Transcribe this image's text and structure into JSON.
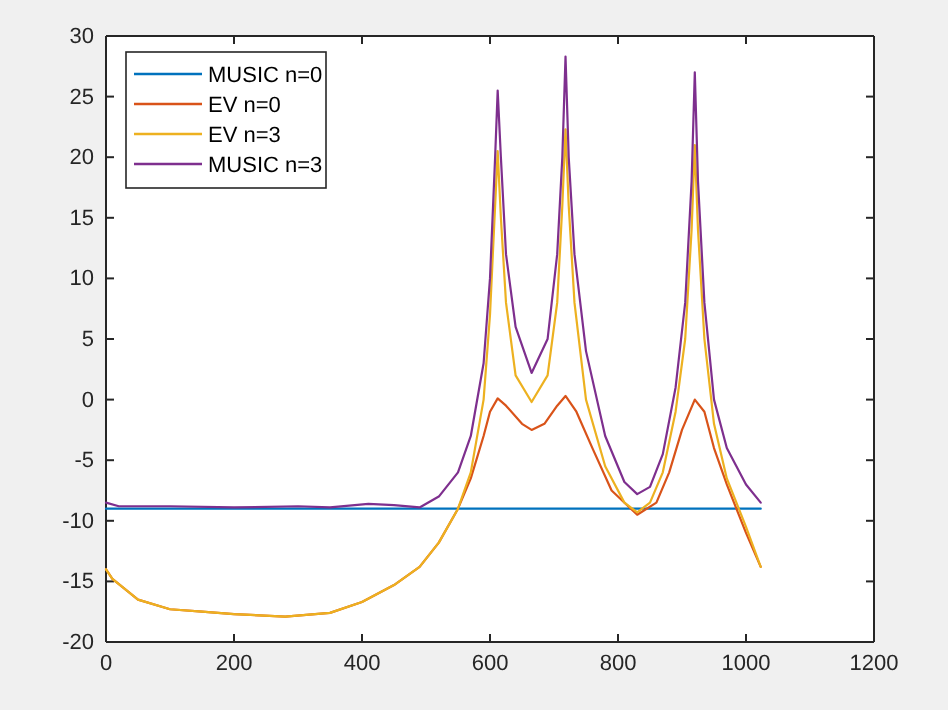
{
  "chart_data": {
    "type": "line",
    "xlim": [
      0,
      1200
    ],
    "xticks": [
      0,
      200,
      400,
      600,
      800,
      1000,
      1200
    ],
    "ylim": [
      -20,
      30
    ],
    "yticks": [
      -20,
      -15,
      -10,
      -5,
      0,
      5,
      10,
      15,
      20,
      25,
      30
    ],
    "grid": false,
    "legend": "top left",
    "line_style": "solid",
    "marker": "none",
    "series": [
      {
        "name": "MUSIC n=0",
        "color": "#0072bd",
        "x": [
          0,
          200,
          400,
          600,
          800,
          1023
        ],
        "values": [
          -9,
          -9,
          -9,
          -9,
          -9,
          -9
        ]
      },
      {
        "name": "EV n=0",
        "color": "#d95319",
        "x": [
          0,
          10,
          50,
          100,
          150,
          200,
          280,
          350,
          400,
          450,
          490,
          520,
          550,
          570,
          590,
          600,
          612,
          625,
          650,
          665,
          685,
          705,
          718,
          735,
          760,
          790,
          830,
          860,
          880,
          900,
          920,
          935,
          950,
          970,
          1000,
          1023
        ],
        "values": [
          -14,
          -14.8,
          -16.5,
          -17.3,
          -17.5,
          -17.7,
          -17.9,
          -17.6,
          -16.7,
          -15.3,
          -13.8,
          -11.8,
          -9,
          -6.5,
          -3,
          -1,
          0.1,
          -0.5,
          -2,
          -2.5,
          -2,
          -0.5,
          0.3,
          -1,
          -4,
          -7.5,
          -9.5,
          -8.5,
          -6,
          -2.5,
          0,
          -1,
          -4,
          -7,
          -11,
          -13.8
        ]
      },
      {
        "name": "EV n=3",
        "color": "#edb120",
        "x": [
          0,
          10,
          50,
          100,
          150,
          200,
          280,
          350,
          400,
          450,
          490,
          520,
          550,
          570,
          590,
          600,
          608,
          612,
          617,
          625,
          640,
          665,
          690,
          705,
          713,
          718,
          723,
          732,
          750,
          780,
          810,
          830,
          850,
          870,
          890,
          905,
          915,
          920,
          925,
          935,
          950,
          970,
          1000,
          1023
        ],
        "values": [
          -14,
          -14.8,
          -16.5,
          -17.3,
          -17.5,
          -17.7,
          -17.9,
          -17.6,
          -16.7,
          -15.3,
          -13.8,
          -11.8,
          -9,
          -6,
          0,
          7,
          16,
          20.5,
          15,
          8,
          2,
          -0.2,
          2,
          8,
          16,
          22.3,
          16,
          8,
          0,
          -5.5,
          -8.5,
          -9.3,
          -8.5,
          -6,
          -1,
          5,
          14,
          21,
          14,
          5,
          -2,
          -6.5,
          -10.5,
          -13.8
        ]
      },
      {
        "name": "MUSIC n=3",
        "color": "#7e2f8e",
        "x": [
          0,
          20,
          100,
          200,
          300,
          350,
          410,
          450,
          490,
          520,
          550,
          570,
          590,
          600,
          608,
          612,
          617,
          625,
          640,
          665,
          690,
          705,
          713,
          718,
          723,
          732,
          750,
          780,
          810,
          830,
          850,
          870,
          890,
          905,
          915,
          920,
          925,
          935,
          950,
          970,
          1000,
          1023
        ],
        "values": [
          -8.5,
          -8.8,
          -8.8,
          -8.9,
          -8.8,
          -8.9,
          -8.6,
          -8.7,
          -8.9,
          -8,
          -6,
          -3,
          3,
          10,
          20,
          25.5,
          20,
          12,
          6,
          2.2,
          5,
          12,
          20,
          28.3,
          20,
          12,
          4,
          -3,
          -6.8,
          -7.8,
          -7.2,
          -4.5,
          1,
          8,
          18,
          27,
          18,
          8,
          0,
          -4,
          -7,
          -8.5
        ]
      }
    ]
  }
}
